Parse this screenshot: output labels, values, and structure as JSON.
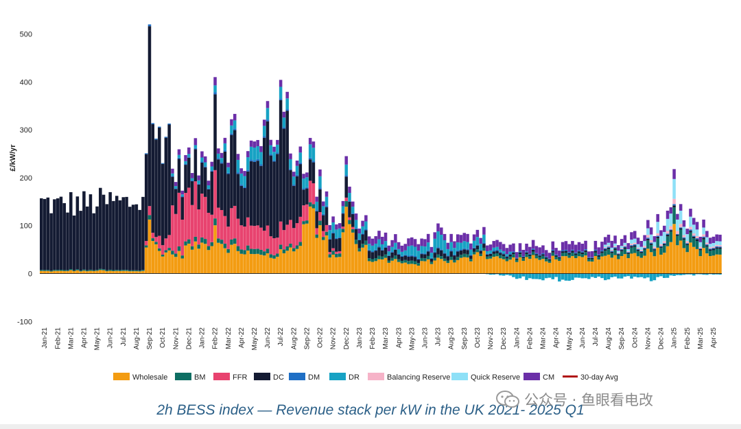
{
  "chart_data": {
    "type": "bar",
    "stacked": true,
    "title": "2h BESS index — Revenue stack per kW in the UK 2021- 2025 Q1",
    "ylabel": "£/kW/yr",
    "xlabel": "",
    "ylim": [
      -100,
      520
    ],
    "yticks": [
      -100,
      0,
      100,
      200,
      300,
      400,
      500
    ],
    "gridlines": false,
    "legend_position": "bottom",
    "x_tick_labels": [
      "Jan-21",
      "Feb-21",
      "Mar-21",
      "Apr-21",
      "May-21",
      "Jun-21",
      "Jul-21",
      "Aug-21",
      "Sep-21",
      "Oct-21",
      "Nov-21",
      "Dec-21",
      "Jan-22",
      "Feb-22",
      "Mar-22",
      "Apr-22",
      "May-22",
      "Jun-22",
      "Jul-22",
      "Aug-22",
      "Sep-22",
      "Oct-22",
      "Nov-22",
      "Dec-22",
      "Jan-23",
      "Feb-23",
      "Mar-23",
      "Apr-23",
      "May-23",
      "Jun-23",
      "Jul-23",
      "Aug-23",
      "Sep-23",
      "Oct-23",
      "Nov-23",
      "Dec-23",
      "Jan-24",
      "Feb-24",
      "Mar-24",
      "Apr-24",
      "May-24",
      "Jun-24",
      "Jul-24",
      "Aug-24",
      "Sep-24",
      "Oct-24",
      "Nov-24",
      "Dec-24",
      "Jan-25",
      "Feb-25",
      "Mar-25",
      "Apr-25"
    ],
    "series": [
      {
        "name": "Wholesale",
        "color": "#F39C12"
      },
      {
        "name": "BM",
        "color": "#0E6E63"
      },
      {
        "name": "FFR",
        "color": "#E8436F"
      },
      {
        "name": "DC",
        "color": "#141B33"
      },
      {
        "name": "DM",
        "color": "#1F6FC5"
      },
      {
        "name": "DR",
        "color": "#17A2C4"
      },
      {
        "name": "Balancing Reserve",
        "color": "#F6B3C8"
      },
      {
        "name": "Quick Reserve",
        "color": "#8EE0F7"
      },
      {
        "name": "CM",
        "color": "#6B2FA8"
      },
      {
        "name": "30-day Avg",
        "color": "#B01010"
      }
    ],
    "monthly_components": {
      "columns": [
        "Wholesale",
        "BM",
        "FFR",
        "DC",
        "DM",
        "DR",
        "Balancing Reserve",
        "Quick Reserve",
        "CM"
      ],
      "rows": [
        [
          5,
          2,
          0,
          140,
          0,
          0,
          0,
          0,
          0
        ],
        [
          5,
          2,
          0,
          135,
          0,
          0,
          0,
          0,
          0
        ],
        [
          6,
          2,
          0,
          138,
          0,
          0,
          0,
          0,
          0
        ],
        [
          5,
          2,
          0,
          138,
          0,
          0,
          0,
          0,
          0
        ],
        [
          6,
          2,
          0,
          140,
          0,
          0,
          0,
          0,
          0
        ],
        [
          5,
          2,
          0,
          142,
          0,
          0,
          0,
          0,
          0
        ],
        [
          5,
          2,
          0,
          140,
          0,
          0,
          0,
          0,
          0
        ],
        [
          5,
          2,
          0,
          142,
          0,
          0,
          0,
          0,
          0
        ],
        [
          60,
          5,
          10,
          200,
          2,
          0,
          0,
          0,
          0
        ],
        [
          45,
          5,
          25,
          215,
          2,
          0,
          0,
          0,
          0
        ],
        [
          40,
          8,
          95,
          60,
          2,
          5,
          0,
          0,
          10
        ],
        [
          55,
          8,
          95,
          55,
          2,
          5,
          0,
          0,
          12
        ],
        [
          60,
          10,
          85,
          60,
          2,
          8,
          0,
          0,
          12
        ],
        [
          70,
          10,
          70,
          110,
          3,
          10,
          0,
          0,
          12
        ],
        [
          55,
          10,
          60,
          140,
          3,
          15,
          0,
          0,
          12
        ],
        [
          45,
          10,
          55,
          90,
          3,
          25,
          0,
          0,
          12
        ],
        [
          38,
          10,
          45,
          125,
          3,
          25,
          0,
          0,
          12
        ],
        [
          35,
          8,
          40,
          180,
          3,
          20,
          0,
          0,
          12
        ],
        [
          42,
          8,
          40,
          210,
          3,
          20,
          0,
          0,
          12
        ],
        [
          55,
          8,
          50,
          105,
          3,
          20,
          0,
          0,
          12
        ],
        [
          125,
          8,
          40,
          40,
          3,
          25,
          0,
          0,
          12
        ],
        [
          85,
          8,
          15,
          40,
          3,
          20,
          0,
          0,
          12
        ],
        [
          38,
          8,
          5,
          30,
          2,
          20,
          0,
          0,
          12
        ],
        [
          95,
          8,
          5,
          30,
          2,
          15,
          0,
          0,
          12
        ],
        [
          55,
          8,
          0,
          20,
          2,
          15,
          0,
          0,
          12
        ],
        [
          25,
          6,
          0,
          15,
          2,
          12,
          0,
          0,
          15
        ],
        [
          28,
          6,
          0,
          12,
          2,
          10,
          0,
          0,
          15
        ],
        [
          25,
          6,
          0,
          10,
          2,
          10,
          0,
          0,
          15
        ],
        [
          18,
          6,
          0,
          8,
          2,
          18,
          0,
          0,
          15
        ],
        [
          25,
          6,
          0,
          8,
          2,
          14,
          0,
          0,
          15
        ],
        [
          30,
          6,
          0,
          12,
          2,
          30,
          0,
          0,
          15
        ],
        [
          25,
          6,
          0,
          10,
          2,
          15,
          0,
          0,
          15
        ],
        [
          30,
          6,
          0,
          8,
          2,
          13,
          0,
          0,
          15
        ],
        [
          45,
          6,
          0,
          8,
          2,
          16,
          0,
          0,
          15
        ],
        [
          35,
          6,
          0,
          5,
          2,
          6,
          0,
          0,
          14
        ],
        [
          28,
          6,
          0,
          4,
          2,
          4,
          0,
          0,
          14
        ],
        [
          30,
          6,
          0,
          3,
          2,
          0,
          0,
          0,
          15
        ],
        [
          32,
          6,
          0,
          3,
          2,
          0,
          0,
          0,
          15
        ],
        [
          28,
          6,
          0,
          3,
          2,
          0,
          0,
          0,
          15
        ],
        [
          32,
          6,
          0,
          3,
          2,
          0,
          0,
          0,
          15
        ],
        [
          30,
          6,
          0,
          3,
          2,
          0,
          0,
          0,
          15
        ],
        [
          32,
          6,
          0,
          3,
          2,
          0,
          0,
          0,
          15
        ],
        [
          30,
          6,
          0,
          3,
          2,
          0,
          0,
          0,
          15
        ],
        [
          35,
          10,
          0,
          3,
          2,
          0,
          2,
          5,
          15
        ],
        [
          38,
          10,
          0,
          3,
          2,
          0,
          2,
          5,
          15
        ],
        [
          40,
          12,
          0,
          3,
          2,
          0,
          3,
          8,
          15
        ],
        [
          45,
          15,
          0,
          3,
          2,
          0,
          5,
          12,
          15
        ],
        [
          50,
          18,
          0,
          3,
          2,
          0,
          5,
          22,
          15
        ],
        [
          75,
          25,
          0,
          3,
          2,
          0,
          8,
          30,
          15
        ],
        [
          55,
          18,
          0,
          3,
          2,
          0,
          5,
          18,
          14
        ],
        [
          45,
          15,
          0,
          3,
          2,
          0,
          4,
          12,
          14
        ],
        [
          40,
          12,
          0,
          3,
          2,
          0,
          3,
          8,
          14
        ]
      ],
      "dr_negative": [
        0,
        0,
        0,
        0,
        0,
        0,
        0,
        0,
        0,
        0,
        0,
        0,
        0,
        0,
        0,
        0,
        0,
        0,
        0,
        0,
        0,
        0,
        0,
        0,
        0,
        0,
        0,
        0,
        0,
        0,
        0,
        0,
        0,
        0,
        2,
        4,
        8,
        10,
        12,
        12,
        12,
        10,
        10,
        10,
        8,
        10,
        12,
        8,
        4,
        3,
        2,
        2
      ]
    },
    "spikes": [
      {
        "label": "Sep-21",
        "total": 520
      },
      {
        "label": "Feb-22",
        "total": 410
      },
      {
        "label": "Jun-22",
        "total": 360
      },
      {
        "label": "Dec-22",
        "total": 245
      },
      {
        "label": "Jan-25",
        "total": 218
      }
    ]
  },
  "watermark": {
    "text": "公众号 · 鱼眼看电改",
    "icon": "wechat-icon"
  }
}
